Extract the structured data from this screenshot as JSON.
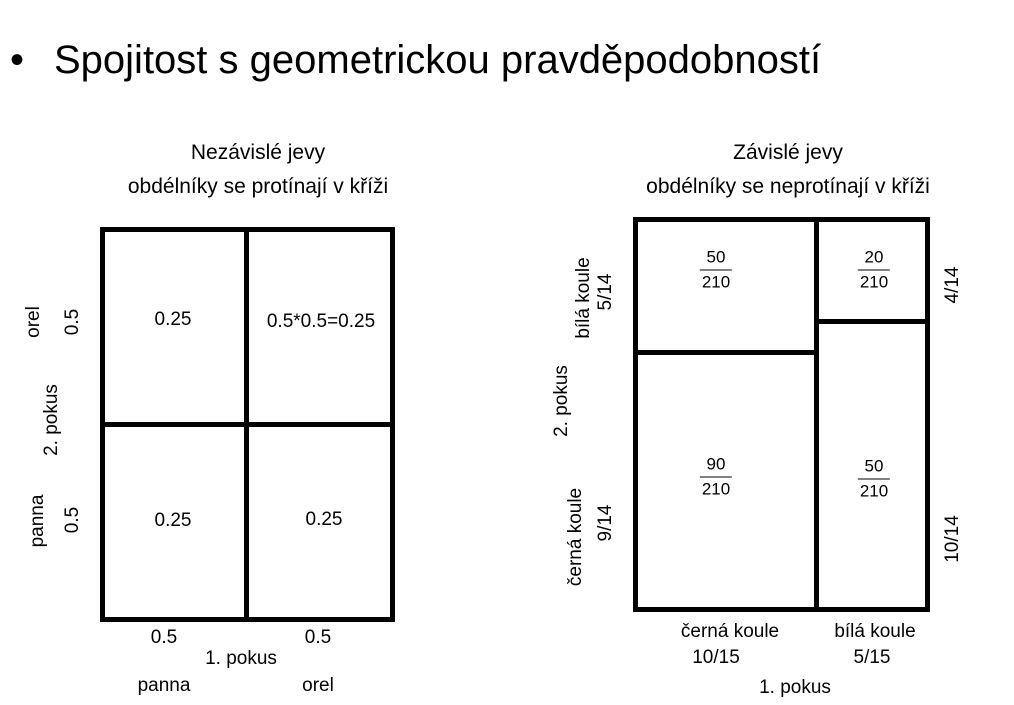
{
  "heading": {
    "bullet": "•",
    "text": "Spojitost s geometrickou pravděpodobností"
  },
  "left_diagram": {
    "title_line1": "Nezávislé jevy",
    "title_line2": "obdélníky se protínají v kříži",
    "cells": {
      "top_left": "0.25",
      "top_right": "0.5*0.5=0.25",
      "bottom_left": "0.25",
      "bottom_right": "0.25"
    },
    "y_axis": {
      "label": "2. pokus",
      "top": {
        "name": "orel",
        "prob": "0.5"
      },
      "bottom": {
        "name": "panna",
        "prob": "0.5"
      }
    },
    "x_axis": {
      "label": "1. pokus",
      "left": {
        "name": "panna",
        "prob": "0.5"
      },
      "right": {
        "name": "orel",
        "prob": "0.5"
      }
    }
  },
  "right_diagram": {
    "title_line1": "Závislé jevy",
    "title_line2": "obdélníky se neprotínají v kříži",
    "cells": {
      "top_left": {
        "num": "50",
        "den": "210"
      },
      "top_right": {
        "num": "20",
        "den": "210"
      },
      "bottom_left": {
        "num": "90",
        "den": "210"
      },
      "bottom_right": {
        "num": "50",
        "den": "210"
      }
    },
    "y_axis": {
      "label": "2. pokus",
      "top": {
        "name": "bílá koule",
        "prob": "5/14"
      },
      "bottom": {
        "name": "černá koule",
        "prob": "9/14"
      }
    },
    "right_side": {
      "top_prob": "4/14",
      "bottom_prob": "10/14"
    },
    "x_axis": {
      "label": "1. pokus",
      "left": {
        "name": "černá koule",
        "prob": "10/15"
      },
      "right": {
        "name": "bílá koule",
        "prob": "5/15"
      }
    }
  }
}
